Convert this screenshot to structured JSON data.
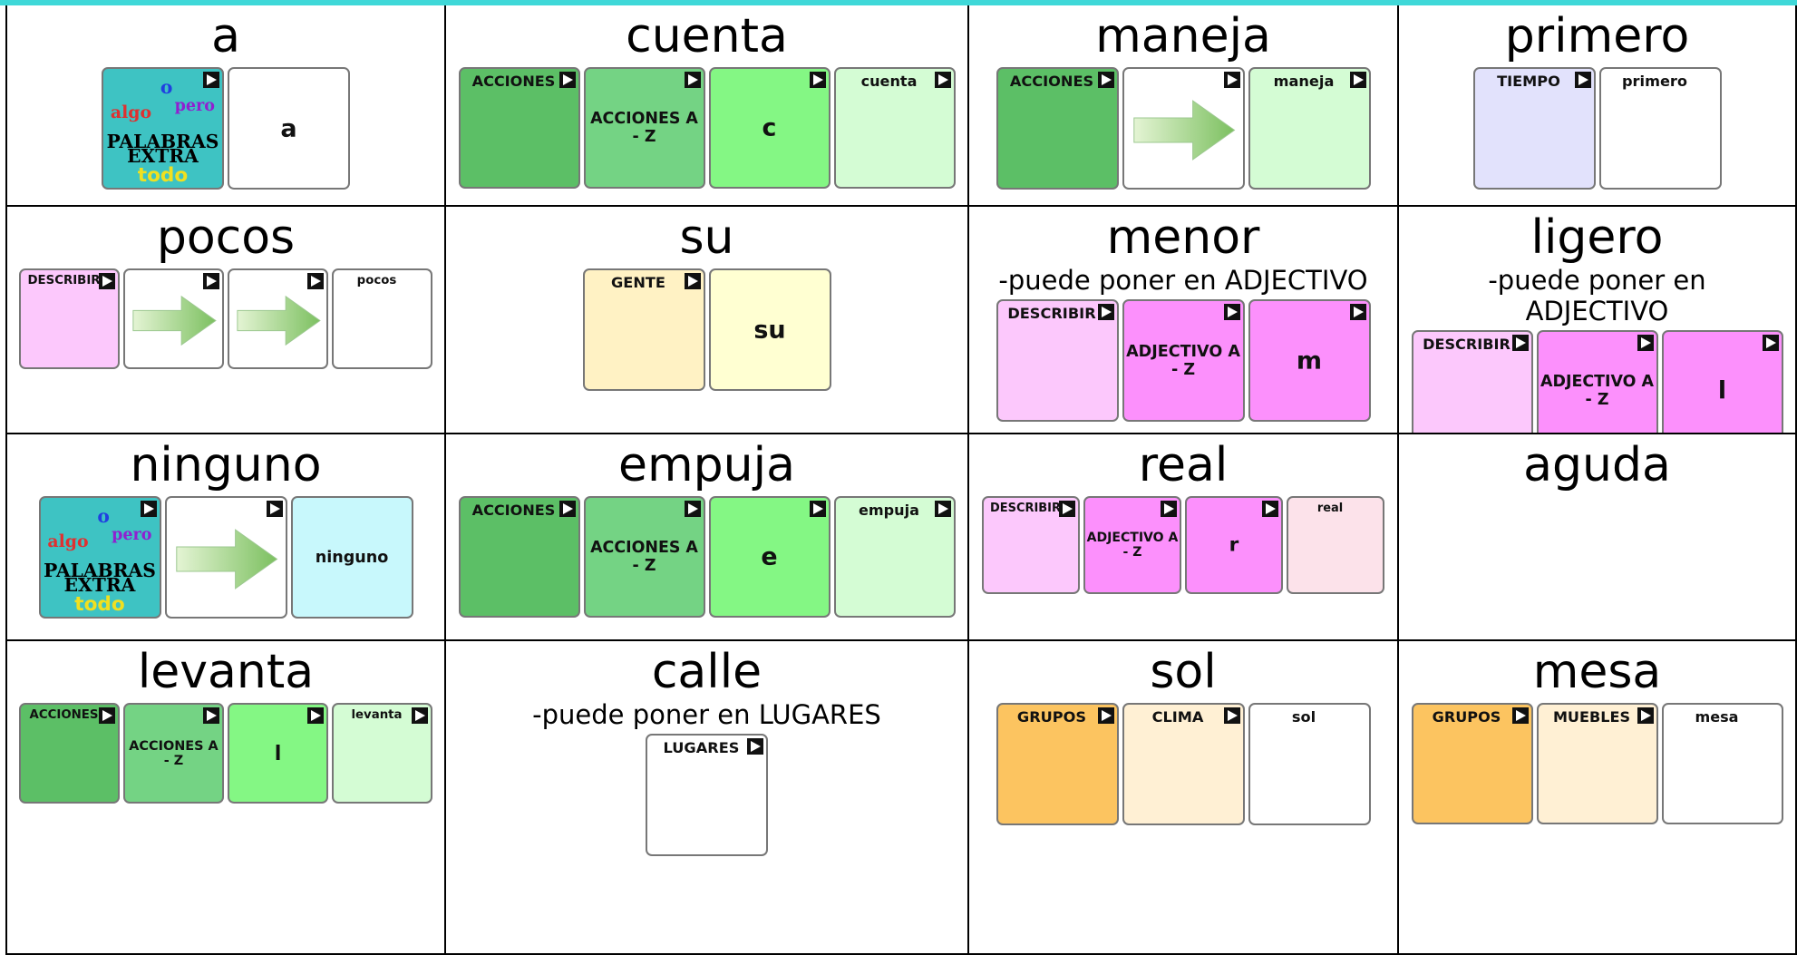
{
  "rows": [
    {
      "cells": [
        {
          "word": "a",
          "tiles": [
            {
              "color": "#3ec3c3",
              "folder": true,
              "words": [
                {
                  "text": "o",
                  "color": "#2040e0"
                },
                {
                  "text": "algo",
                  "color": "#e03030"
                },
                {
                  "text": "pero",
                  "color": "#9020d0"
                },
                {
                  "text": "PALABRAS",
                  "color": "#000000"
                },
                {
                  "text": "EXTRA",
                  "color": "#000000"
                },
                {
                  "text": "todo",
                  "color": "#f0e020"
                }
              ]
            },
            {
              "color": "#ffffff",
              "center": "a"
            }
          ]
        },
        {
          "word": "cuenta",
          "tiles": [
            {
              "color": "#5cbf66",
              "folder": true,
              "top": "ACCIONES"
            },
            {
              "color": "#74d384",
              "folder": true,
              "center": "ACCIONES A - Z"
            },
            {
              "color": "#84f784",
              "folder": true,
              "center": "c"
            },
            {
              "color": "#d4fcd4",
              "folder": true,
              "top": "cuenta"
            }
          ]
        },
        {
          "word": "maneja",
          "tiles": [
            {
              "color": "#5cbf66",
              "folder": true,
              "top": "ACCIONES"
            },
            {
              "color": "#ffffff",
              "folder": true,
              "arrow": true
            },
            {
              "color": "#d4fcd4",
              "folder": true,
              "top": "maneja"
            }
          ]
        },
        {
          "word": "primero",
          "tiles": [
            {
              "color": "#e2e2fc",
              "folder": true,
              "top": "TIEMPO"
            },
            {
              "color": "#ffffff",
              "top": "primero"
            }
          ]
        }
      ]
    },
    {
      "cells": [
        {
          "word": "pocos",
          "tiles": [
            {
              "color": "#fcc8fc",
              "folder": true,
              "top": "DESCRIBIR"
            },
            {
              "color": "#ffffff",
              "folder": true,
              "arrow": true
            },
            {
              "color": "#ffffff",
              "folder": true,
              "arrow": true
            },
            {
              "color": "#ffffff",
              "top": "pocos"
            }
          ]
        },
        {
          "word": "su",
          "tiles": [
            {
              "color": "#fff2c4",
              "folder": true,
              "top": "GENTE"
            },
            {
              "color": "#ffffd2",
              "center": "su"
            }
          ]
        },
        {
          "word": "menor",
          "note": "-puede poner en ADJECTIVO",
          "tiles": [
            {
              "color": "#fcc8fc",
              "folder": true,
              "top": "DESCRIBIR"
            },
            {
              "color": "#fc90fc",
              "folder": true,
              "center": "ADJECTIVO A - Z"
            },
            {
              "color": "#fc90fc",
              "folder": true,
              "center": "m"
            }
          ]
        },
        {
          "word": "ligero",
          "note": "-puede poner en ADJECTIVO",
          "tiles": [
            {
              "color": "#fcc8fc",
              "folder": true,
              "top": "DESCRIBIR"
            },
            {
              "color": "#fc90fc",
              "folder": true,
              "center": "ADJECTIVO A - Z"
            },
            {
              "color": "#fc90fc",
              "folder": true,
              "center": "l"
            }
          ]
        }
      ]
    },
    {
      "cells": [
        {
          "word": "ninguno",
          "tiles": [
            {
              "color": "#3ec3c3",
              "folder": true,
              "words": [
                {
                  "text": "o",
                  "color": "#2040e0"
                },
                {
                  "text": "algo",
                  "color": "#e03030"
                },
                {
                  "text": "pero",
                  "color": "#9020d0"
                },
                {
                  "text": "PALABRAS",
                  "color": "#000000"
                },
                {
                  "text": "EXTRA",
                  "color": "#000000"
                },
                {
                  "text": "todo",
                  "color": "#f0e020"
                }
              ]
            },
            {
              "color": "#ffffff",
              "folder": true,
              "arrow": true
            },
            {
              "color": "#c8f8fc",
              "center": "ninguno"
            }
          ]
        },
        {
          "word": "empuja",
          "tiles": [
            {
              "color": "#5cbf66",
              "folder": true,
              "top": "ACCIONES"
            },
            {
              "color": "#74d384",
              "folder": true,
              "center": "ACCIONES A - Z"
            },
            {
              "color": "#84f784",
              "folder": true,
              "center": "e"
            },
            {
              "color": "#d4fcd4",
              "folder": true,
              "top": "empuja"
            }
          ]
        },
        {
          "word": "real",
          "tiles": [
            {
              "color": "#fcc8fc",
              "folder": true,
              "top": "DESCRIBIR"
            },
            {
              "color": "#fc90fc",
              "folder": true,
              "center": "ADJECTIVO A - Z"
            },
            {
              "color": "#fc90fc",
              "folder": true,
              "center": "r"
            },
            {
              "color": "#fce2ea",
              "top": "real"
            }
          ]
        },
        {
          "word": "aguda",
          "tiles": []
        }
      ]
    },
    {
      "cells": [
        {
          "word": "levanta",
          "tiles": [
            {
              "color": "#5cbf66",
              "folder": true,
              "top": "ACCIONES"
            },
            {
              "color": "#74d384",
              "folder": true,
              "center": "ACCIONES A - Z"
            },
            {
              "color": "#84f784",
              "folder": true,
              "center": "l"
            },
            {
              "color": "#d4fcd4",
              "folder": true,
              "top": "levanta"
            }
          ]
        },
        {
          "word": "calle",
          "note": "-puede poner en LUGARES",
          "tiles": [
            {
              "color": "#ffffff",
              "folder": true,
              "top": "LUGARES"
            }
          ]
        },
        {
          "word": "sol",
          "tiles": [
            {
              "color": "#fcc460",
              "folder": true,
              "top": "GRUPOS"
            },
            {
              "color": "#fff0d4",
              "folder": true,
              "top": "CLIMA"
            },
            {
              "color": "#ffffff",
              "top": "sol"
            }
          ]
        },
        {
          "word": "mesa",
          "tiles": [
            {
              "color": "#fcc460",
              "folder": true,
              "top": "GRUPOS"
            },
            {
              "color": "#fff0d4",
              "folder": true,
              "top": "MUEBLES"
            },
            {
              "color": "#ffffff",
              "top": "mesa"
            }
          ]
        }
      ]
    }
  ]
}
